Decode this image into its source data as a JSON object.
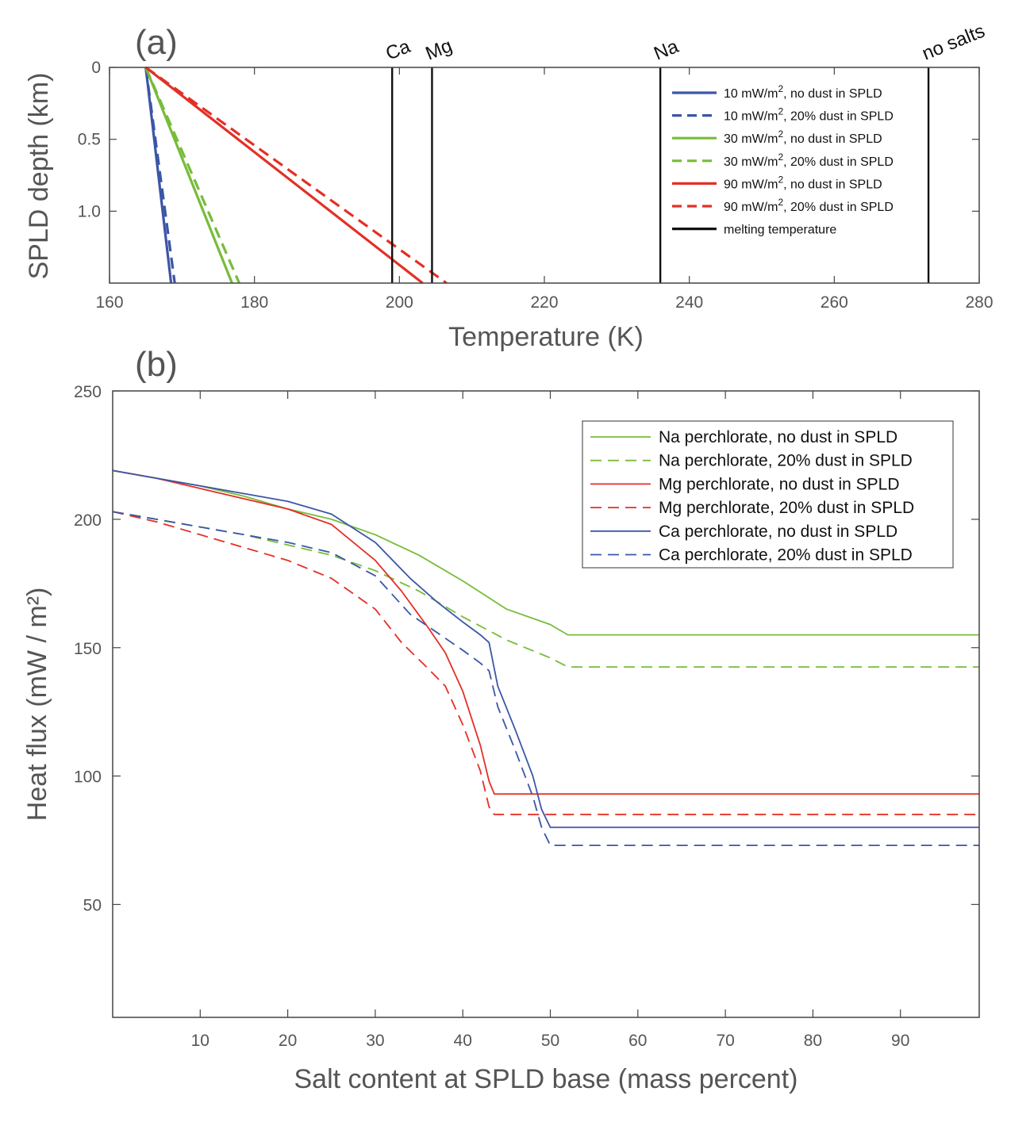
{
  "chart_data": [
    {
      "type": "line",
      "panel_label": "(a)",
      "xlabel": "Temperature (K)",
      "ylabel": "SPLD depth (km)",
      "xlim": [
        160,
        280
      ],
      "ylim": [
        1.5,
        0
      ],
      "y_reversed": true,
      "xticks": [
        "160",
        "180",
        "200",
        "220",
        "240",
        "260",
        "280"
      ],
      "xtick_values": [
        160,
        180,
        200,
        220,
        240,
        260,
        280
      ],
      "yticks": [
        "0",
        "0.5",
        "1.0"
      ],
      "ytick_values": [
        0,
        0.5,
        1.0
      ],
      "grid": false,
      "legend_position": "top-right",
      "series": [
        {
          "name": "10 mW/m², no dust in SPLD",
          "name_base": "10 mW/m",
          "name_sup": "2",
          "name_tail": ", no dust in SPLD",
          "color": "#3c56a6",
          "dash": "solid",
          "x": [
            165,
            168.5
          ],
          "y": [
            0,
            1.5
          ]
        },
        {
          "name": "10 mW/m², 20% dust in SPLD",
          "name_base": "10 mW/m",
          "name_sup": "2",
          "name_tail": ", 20% dust in SPLD",
          "color": "#3c56a6",
          "dash": "dashed",
          "x": [
            165,
            169
          ],
          "y": [
            0,
            1.5
          ]
        },
        {
          "name": "30 mW/m², no dust in SPLD",
          "name_base": "30 mW/m",
          "name_sup": "2",
          "name_tail": ", no dust in SPLD",
          "color": "#77bc3a",
          "dash": "solid",
          "x": [
            165,
            176.9
          ],
          "y": [
            0,
            1.5
          ]
        },
        {
          "name": "30 mW/m², 20% dust in SPLD",
          "name_base": "30 mW/m",
          "name_sup": "2",
          "name_tail": ", 20% dust in SPLD",
          "color": "#77bc3a",
          "dash": "dashed",
          "x": [
            165,
            177.9
          ],
          "y": [
            0,
            1.5
          ]
        },
        {
          "name": "90 mW/m², no dust in SPLD",
          "name_base": "90 mW/m",
          "name_sup": "2",
          "name_tail": ", no dust in SPLD",
          "color": "#e33026",
          "dash": "solid",
          "x": [
            165,
            203.2
          ],
          "y": [
            0,
            1.5
          ]
        },
        {
          "name": "90 mW/m², 20% dust in SPLD",
          "name_base": "90 mW/m",
          "name_sup": "2",
          "name_tail": ", 20% dust in SPLD",
          "color": "#e33026",
          "dash": "dashed",
          "x": [
            165,
            206.5
          ],
          "y": [
            0,
            1.5
          ]
        }
      ],
      "melting_lines": {
        "name": "melting temperature",
        "color": "#111111",
        "items": [
          {
            "label": "Ca",
            "x": 199
          },
          {
            "label": "Mg",
            "x": 204.5
          },
          {
            "label": "Na",
            "x": 236
          },
          {
            "label": "no salts",
            "x": 273
          }
        ]
      }
    },
    {
      "type": "line",
      "panel_label": "(b)",
      "xlabel": "Salt content at SPLD base (mass percent)",
      "ylabel": "Heat flux (mW / m²)",
      "xlim": [
        0,
        99
      ],
      "ylim": [
        6,
        250
      ],
      "xticks": [
        "10",
        "20",
        "30",
        "40",
        "50",
        "60",
        "70",
        "80",
        "90"
      ],
      "xtick_values": [
        10,
        20,
        30,
        40,
        50,
        60,
        70,
        80,
        90
      ],
      "yticks": [
        "50",
        "100",
        "150",
        "200",
        "250"
      ],
      "ytick_values": [
        50,
        100,
        150,
        200,
        250
      ],
      "grid": false,
      "legend_position": "top-right",
      "series": [
        {
          "name": "Na perchlorate, no dust in SPLD",
          "color": "#77bc3a",
          "dash": "solid",
          "x": [
            0,
            5,
            10,
            15,
            20,
            25,
            30,
            35,
            40,
            45,
            50,
            52,
            99
          ],
          "y": [
            219,
            216,
            213,
            209,
            204,
            200,
            194,
            186,
            176,
            165,
            159,
            155,
            155
          ]
        },
        {
          "name": "Na perchlorate, 20% dust in SPLD",
          "color": "#77bc3a",
          "dash": "dashed",
          "x": [
            0,
            5,
            10,
            15,
            20,
            25,
            30,
            35,
            40,
            45,
            50,
            52,
            99
          ],
          "y": [
            203,
            200,
            197,
            194,
            190,
            186,
            180,
            172,
            162,
            153,
            146,
            142.5,
            142.5
          ]
        },
        {
          "name": "Mg perchlorate, no dust in SPLD",
          "color": "#e33026",
          "dash": "solid",
          "x": [
            0,
            5,
            10,
            15,
            20,
            25,
            30,
            33,
            36,
            38,
            40,
            42,
            43,
            43.6,
            99
          ],
          "y": [
            219,
            216,
            212,
            208,
            204,
            198,
            184,
            172,
            158,
            148,
            133,
            112,
            98,
            93,
            93
          ]
        },
        {
          "name": "Mg perchlorate, 20% dust in SPLD",
          "color": "#e33026",
          "dash": "dashed",
          "x": [
            0,
            5,
            10,
            15,
            20,
            25,
            30,
            33,
            36,
            38,
            40,
            42,
            43,
            43.6,
            99
          ],
          "y": [
            203,
            199,
            194,
            189,
            184,
            177,
            165,
            152,
            142,
            135,
            120,
            102,
            88,
            85,
            85
          ]
        },
        {
          "name": "Ca perchlorate, no dust in SPLD",
          "color": "#3c56a6",
          "dash": "solid",
          "x": [
            0,
            5,
            10,
            15,
            20,
            25,
            30,
            34,
            37,
            40,
            42,
            43,
            44,
            46,
            48,
            49,
            50,
            99
          ],
          "y": [
            219,
            216,
            213,
            210,
            207,
            202,
            191,
            177,
            168,
            160,
            155,
            152,
            135,
            118,
            100,
            87,
            80,
            80
          ]
        },
        {
          "name": "Ca perchlorate, 20% dust in SPLD",
          "color": "#3c56a6",
          "dash": "dashed",
          "x": [
            0,
            5,
            10,
            15,
            20,
            25,
            30,
            34,
            37,
            40,
            42,
            43,
            44,
            46,
            48,
            49,
            50,
            99
          ],
          "y": [
            203,
            200,
            197,
            194,
            191,
            187,
            178,
            163,
            156,
            149,
            144,
            141,
            127,
            110,
            92,
            80,
            73,
            73
          ]
        }
      ]
    }
  ]
}
